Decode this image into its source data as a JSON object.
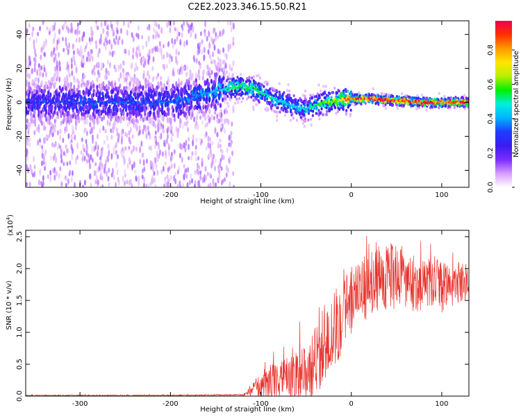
{
  "figure_title": "C2E2.2023.346.15.50.R21",
  "chart_data": [
    {
      "type": "heatmap",
      "xlabel": "Height of straight line (km)",
      "ylabel": "Frequency (Hz)",
      "xlim": [
        -360,
        130
      ],
      "ylim": [
        -50,
        48
      ],
      "x_ticks": [
        -300,
        -200,
        -100,
        0,
        100
      ],
      "y_ticks": [
        -40,
        -20,
        0,
        20,
        40
      ],
      "colorbar": {
        "label": "Normalized spectral amplitude",
        "range": [
          0,
          0.97
        ],
        "ticks": [
          0.0,
          0.2,
          0.4,
          0.6,
          0.8
        ],
        "colors": [
          "#ffffff",
          "#d79cff",
          "#7a2cff",
          "#3a1cf0",
          "#1d3cff",
          "#00b4ff",
          "#00f0e0",
          "#00f000",
          "#b8f000",
          "#ffe600",
          "#ff9a00",
          "#ff3000",
          "#f00050"
        ]
      },
      "ridge_frequency_profile": {
        "x": [
          -360,
          -300,
          -200,
          -160,
          -140,
          -130,
          -120,
          -110,
          -100,
          -90,
          -80,
          -70,
          -60,
          -50,
          -40,
          -30,
          -20,
          -10,
          0,
          20,
          50,
          80,
          100,
          130
        ],
        "y": [
          0,
          0,
          0,
          5,
          8,
          9,
          9,
          8,
          6,
          3,
          1,
          -1,
          -3,
          -4,
          -2,
          0,
          1,
          2,
          2,
          2,
          1,
          0,
          0,
          0
        ]
      },
      "amplitude_profile": {
        "x": [
          -360,
          -300,
          -200,
          -160,
          -140,
          -130,
          -120,
          -100,
          -80,
          -60,
          -40,
          -20,
          0,
          40,
          80,
          130
        ],
        "y": [
          0.3,
          0.32,
          0.33,
          0.38,
          0.45,
          0.55,
          0.55,
          0.5,
          0.45,
          0.42,
          0.5,
          0.65,
          0.85,
          0.9,
          0.88,
          0.85
        ]
      }
    },
    {
      "type": "line",
      "xlabel": "Height of straight line (km)",
      "ylabel": "SNR (10 * v/v)",
      "y_multiplier": "(x10",
      "y_multiplier_exp": "4",
      "y_multiplier_close": ")",
      "xlim": [
        -360,
        130
      ],
      "ylim": [
        0,
        2.6
      ],
      "x_ticks": [
        -300,
        -200,
        -100,
        0,
        100
      ],
      "y_ticks": [
        0.0,
        0.5,
        1.0,
        1.5,
        2.0,
        2.5
      ],
      "series": [
        {
          "color": "#e8302a",
          "envelope": {
            "x": [
              -360,
              -200,
              -120,
              -115,
              -110,
              -100,
              -90,
              -80,
              -70,
              -60,
              -50,
              -40,
              -30,
              -20,
              -10,
              0,
              10,
              20,
              30,
              40,
              50,
              60,
              70,
              80,
              90,
              100,
              110,
              130
            ],
            "mean": [
              0.01,
              0.01,
              0.02,
              0.05,
              0.1,
              0.15,
              0.2,
              0.25,
              0.25,
              0.3,
              0.35,
              0.5,
              0.8,
              1.0,
              1.3,
              1.5,
              1.6,
              1.75,
              1.85,
              1.9,
              1.85,
              1.8,
              1.75,
              1.75,
              1.75,
              1.7,
              1.75,
              1.8
            ],
            "spread": [
              0.01,
              0.01,
              0.01,
              0.05,
              0.12,
              0.2,
              0.3,
              0.35,
              0.35,
              0.4,
              0.45,
              0.6,
              0.6,
              0.7,
              0.6,
              0.55,
              0.5,
              0.5,
              0.5,
              0.55,
              0.5,
              0.45,
              0.45,
              0.4,
              0.4,
              0.4,
              0.35,
              0.3
            ]
          }
        }
      ]
    }
  ]
}
